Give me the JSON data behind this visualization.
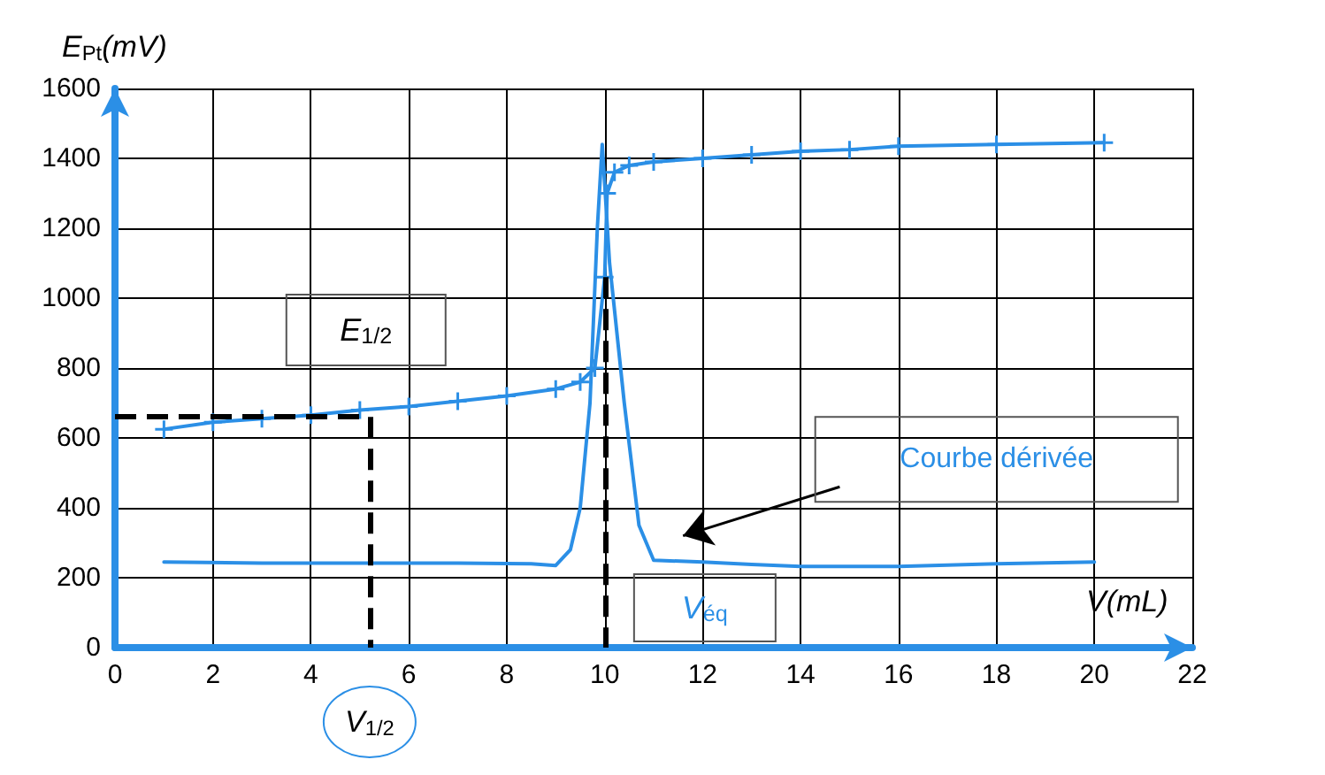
{
  "chart_data": {
    "type": "line",
    "xlabel": "V(mL)",
    "ylabel": "E$_{Pt}$(mV)",
    "xlim": [
      0,
      22
    ],
    "xticks": [
      0,
      2,
      4,
      6,
      8,
      10,
      12,
      14,
      16,
      18,
      20,
      22
    ],
    "ylim": [
      0,
      1600
    ],
    "yticks": [
      0,
      200,
      400,
      600,
      800,
      1000,
      1200,
      1400,
      1600
    ],
    "grid": true,
    "legend": false,
    "series": [
      {
        "color": "#2b8fe6",
        "marker": "cross",
        "x": [
          1,
          2,
          3,
          4,
          5,
          6,
          7,
          8,
          9,
          9.5,
          9.8,
          10,
          10.05,
          10.2,
          10.5,
          11,
          12,
          13,
          14,
          15,
          16,
          18,
          20.2
        ],
        "values": [
          625,
          645,
          655,
          665,
          680,
          690,
          705,
          720,
          740,
          760,
          800,
          1060,
          1300,
          1360,
          1380,
          1390,
          1400,
          1410,
          1420,
          1425,
          1435,
          1440,
          1445
        ]
      },
      {
        "name": "Courbe dérivée",
        "color": "#2b8fe6",
        "marker": "none",
        "x": [
          1,
          3,
          5,
          7,
          8.5,
          9,
          9.3,
          9.5,
          9.7,
          9.85,
          9.95,
          10.1,
          10.4,
          10.7,
          11,
          12,
          13,
          14,
          16,
          18,
          20
        ],
        "values": [
          245,
          242,
          242,
          242,
          240,
          235,
          280,
          400,
          700,
          1200,
          1440,
          1100,
          700,
          350,
          250,
          245,
          238,
          232,
          232,
          240,
          245
        ]
      }
    ],
    "ref_lines": [
      {
        "axis": "y",
        "value": 660,
        "label": "E$_{1/2}$",
        "line_style": "dashed",
        "color": "#000000"
      },
      {
        "axis": "x",
        "value": 5.2,
        "label": "V$_{1/2}$",
        "line_style": "dashed",
        "color": "#000000"
      },
      {
        "axis": "x",
        "value": 10,
        "label": "V$_{éq}$",
        "line_style": "dashed",
        "color": "#000000"
      }
    ]
  }
}
